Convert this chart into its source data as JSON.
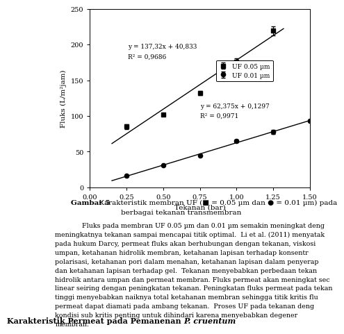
{
  "xlabel": "Tekanan (bar)",
  "ylabel": "Fluks (L/m²jam)",
  "xlim": [
    0,
    1.5
  ],
  "ylim": [
    0,
    250
  ],
  "xticks": [
    0,
    0.25,
    0.5,
    0.75,
    1,
    1.25,
    1.5
  ],
  "yticks": [
    0,
    50,
    100,
    150,
    200,
    250
  ],
  "series1_label": "UF 0.05 µm",
  "series2_label": "UF 0.01 µm",
  "series1_x": [
    0.25,
    0.5,
    0.75,
    1.0,
    1.25
  ],
  "series1_y": [
    85,
    102,
    132,
    176,
    219
  ],
  "series1_yerr": [
    3,
    2,
    3,
    5,
    6
  ],
  "series2_x": [
    0.25,
    0.5,
    0.75,
    1.0,
    1.25,
    1.5
  ],
  "series2_y": [
    16,
    31,
    45,
    65,
    78,
    93
  ],
  "series2_yerr": [
    1,
    1,
    1,
    2,
    3,
    2
  ],
  "eq1": "y = 137,32x + 40,833",
  "eq1_r2": "R² = 0,9686",
  "eq2": "y = 62,375x + 0,1297",
  "eq2_r2": "R² = 0,9971",
  "line1_slope": 137.32,
  "line1_intercept": 40.833,
  "line2_slope": 62.375,
  "line2_intercept": 0.1297,
  "caption_bold": "Gambar 5",
  "caption_text": " Karakteristik membran UF (■ = 0.05 µm dan ● = 0.01 µm) pada",
  "caption_text2": "berbagai tekanan transmembran",
  "body_text": "Fluks pada membran UF 0.05 µm dan 0.01 µm semakin meningkat deng\nmeningkatnya tekanan sampai mencapai titik optimal.  Li et al. (2011) menyatak\npada hukum Darcy, permeat fluks akan berhubungan dengan tekanan, viskosi\numpan, ketahanan hidrolik membran, ketahanan lapisan terhadap konsentr\npolarisasi, ketahanan pori dalam menahan, ketahanan lapisan dalam penyerap\ndan ketahanan lapisan terhadap gel.  Tekanan menyebabkan perbedaan tekan\nhidrolik antara umpan dan permeat membran. Fluks permeat akan meningkat sec\nlinear seiring dengan peningkatan tekanan. Peningkatan fluks permeat pada tekan\ntinggi menyebabkan naiknya total ketahanan membran sehingga titik kritis flu\npermeat dapat diamati pada ambang tekanan.  Proses UF pada tekanan deng\nkondisi sub kritis penting untuk dihindari karena menyebabkan degener\nmembran.",
  "footer_bold": "Karakteristik Permeat pada Pemanenan ",
  "footer_italic": "P. cruentum",
  "background_color": "#ffffff"
}
